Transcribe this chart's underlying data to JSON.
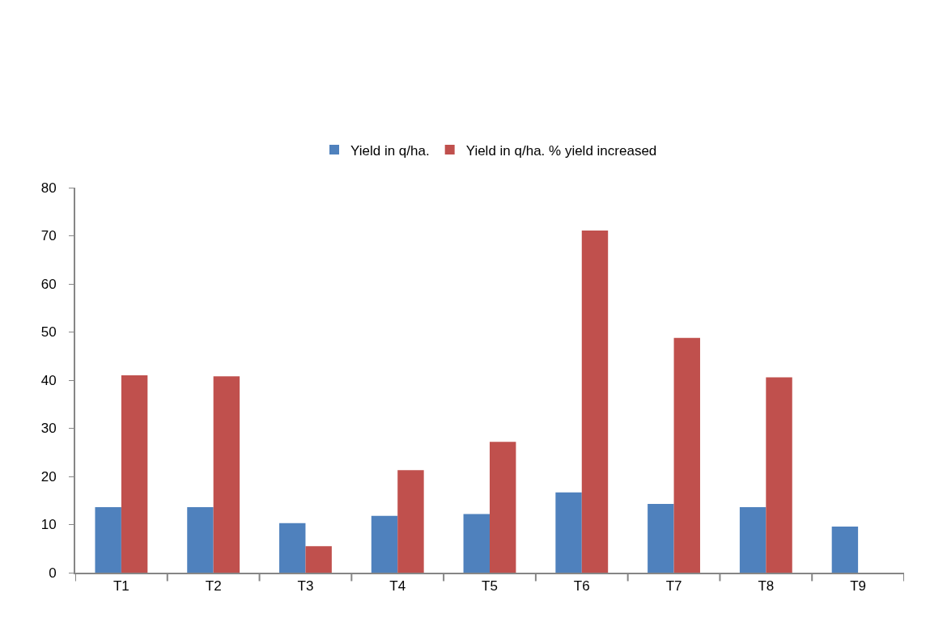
{
  "chart_data": {
    "type": "bar",
    "categories": [
      "T1",
      "T2",
      "T3",
      "T4",
      "T5",
      "T6",
      "T7",
      "T8",
      "T9"
    ],
    "series": [
      {
        "name": "Yield in q/ha.",
        "color": "#4f81bd",
        "values": [
          13.6,
          13.6,
          10.3,
          11.8,
          12.2,
          16.7,
          14.3,
          13.6,
          9.6
        ]
      },
      {
        "name": "Yield in q/ha. % yield increased",
        "color": "#c0504d",
        "values": [
          41.0,
          40.8,
          5.5,
          21.3,
          27.2,
          71.1,
          48.8,
          40.6,
          null
        ]
      }
    ],
    "ylim": [
      0,
      80
    ],
    "yticks": [
      0,
      10,
      20,
      30,
      40,
      50,
      60,
      70,
      80
    ],
    "grid": false,
    "legend": "top"
  }
}
